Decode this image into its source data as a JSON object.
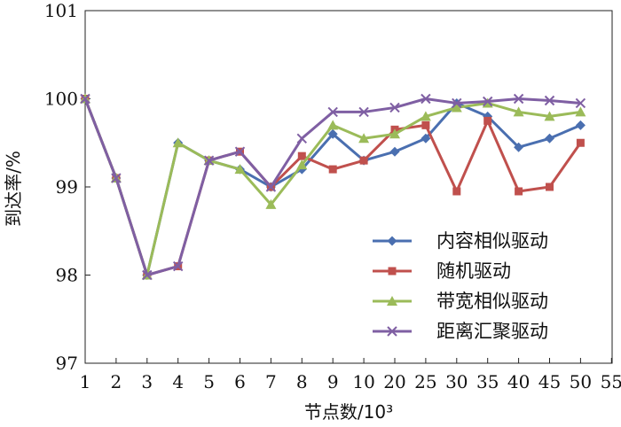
{
  "chart_data": {
    "type": "line",
    "title": "",
    "xlabel": "节点数/10³",
    "ylabel": "到达率/%",
    "categories": [
      "1",
      "2",
      "3",
      "4",
      "5",
      "6",
      "7",
      "8",
      "9",
      "10",
      "20",
      "25",
      "30",
      "35",
      "40",
      "45",
      "50"
    ],
    "x_tick_labels": [
      "1",
      "2",
      "3",
      "4",
      "5",
      "6",
      "7",
      "8",
      "9",
      "10",
      "20",
      "25",
      "30",
      "35",
      "40",
      "45",
      "50",
      "55"
    ],
    "y_tick_labels": [
      "97",
      "98",
      "99",
      "100",
      "101"
    ],
    "ylim": [
      97,
      101
    ],
    "grid": false,
    "legend_position": "bottom-right",
    "series": [
      {
        "name": "内容相似驱动",
        "color": "#4a6fb0",
        "marker": "diamond",
        "values": [
          100,
          99.1,
          98.0,
          99.5,
          99.3,
          99.2,
          99.0,
          99.2,
          99.6,
          99.3,
          99.4,
          99.55,
          99.95,
          99.8,
          99.45,
          99.55,
          99.7
        ]
      },
      {
        "name": "随机驱动",
        "color": "#c0504d",
        "marker": "square",
        "values": [
          100,
          99.1,
          98.0,
          98.1,
          99.3,
          99.4,
          99.0,
          99.35,
          99.2,
          99.3,
          99.65,
          99.7,
          98.95,
          99.75,
          98.95,
          99.0,
          99.5
        ]
      },
      {
        "name": "带宽相似驱动",
        "color": "#9bbb59",
        "marker": "triangle",
        "values": [
          100,
          99.1,
          98.0,
          99.5,
          99.3,
          99.2,
          98.8,
          99.25,
          99.7,
          99.55,
          99.6,
          99.8,
          99.9,
          99.95,
          99.85,
          99.8,
          99.85
        ]
      },
      {
        "name": "距离汇聚驱动",
        "color": "#7f5fa3",
        "marker": "x",
        "values": [
          100,
          99.1,
          98.0,
          98.1,
          99.3,
          99.4,
          99.0,
          99.55,
          99.85,
          99.85,
          99.9,
          100.0,
          99.95,
          99.97,
          100.0,
          99.98,
          99.95
        ]
      }
    ]
  }
}
